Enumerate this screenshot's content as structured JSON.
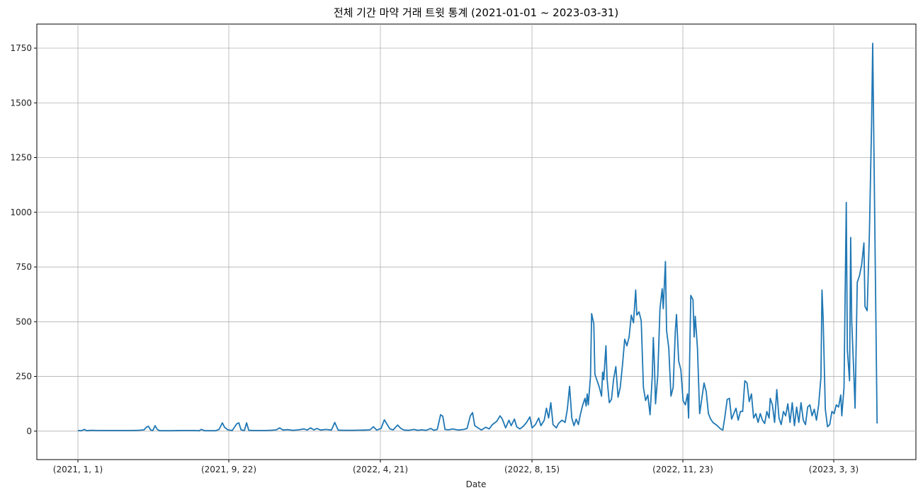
{
  "chart_data": {
    "type": "line",
    "title": "전체 기간 마약 거래 트윗 통계 (2021-01-01 ~ 2023-03-31)",
    "xlabel": "Date",
    "ylabel": "",
    "x_tick_labels": [
      "(2021, 1, 1)",
      "(2021, 9, 22)",
      "(2022, 4, 21)",
      "(2022, 8, 15)",
      "(2022, 11, 23)",
      "(2023, 3, 3)"
    ],
    "y_tick_labels": [
      "0",
      "250",
      "500",
      "750",
      "1000",
      "1250",
      "1500",
      "1750"
    ],
    "ylim": [
      -130,
      1860
    ],
    "grid": true,
    "series_color": "#1f77b4",
    "series": [
      {
        "name": "",
        "points": [
          [
            0,
            3
          ],
          [
            3,
            2
          ],
          [
            6,
            8
          ],
          [
            8,
            2
          ],
          [
            12,
            4
          ],
          [
            18,
            3
          ],
          [
            25,
            3
          ],
          [
            32,
            3
          ],
          [
            40,
            3
          ],
          [
            48,
            3
          ],
          [
            55,
            4
          ],
          [
            60,
            6
          ],
          [
            62,
            18
          ],
          [
            64,
            22
          ],
          [
            66,
            5
          ],
          [
            68,
            3
          ],
          [
            70,
            25
          ],
          [
            72,
            8
          ],
          [
            74,
            2
          ],
          [
            85,
            2
          ],
          [
            95,
            3
          ],
          [
            105,
            3
          ],
          [
            110,
            2
          ],
          [
            112,
            8
          ],
          [
            115,
            2
          ],
          [
            125,
            2
          ],
          [
            128,
            8
          ],
          [
            131,
            38
          ],
          [
            133,
            18
          ],
          [
            136,
            6
          ],
          [
            140,
            3
          ],
          [
            144,
            33
          ],
          [
            146,
            38
          ],
          [
            148,
            6
          ],
          [
            151,
            3
          ],
          [
            153,
            38
          ],
          [
            155,
            4
          ],
          [
            160,
            3
          ],
          [
            170,
            3
          ],
          [
            175,
            4
          ],
          [
            180,
            6
          ],
          [
            183,
            15
          ],
          [
            186,
            5
          ],
          [
            190,
            7
          ],
          [
            195,
            4
          ],
          [
            200,
            6
          ],
          [
            205,
            10
          ],
          [
            208,
            5
          ],
          [
            211,
            15
          ],
          [
            214,
            6
          ],
          [
            217,
            12
          ],
          [
            220,
            5
          ],
          [
            225,
            8
          ],
          [
            230,
            5
          ],
          [
            233,
            40
          ],
          [
            236,
            5
          ],
          [
            240,
            4
          ],
          [
            250,
            4
          ],
          [
            260,
            5
          ],
          [
            265,
            6
          ],
          [
            268,
            20
          ],
          [
            271,
            5
          ],
          [
            275,
            12
          ],
          [
            278,
            52
          ],
          [
            280,
            35
          ],
          [
            283,
            10
          ],
          [
            286,
            6
          ],
          [
            290,
            28
          ],
          [
            293,
            12
          ],
          [
            296,
            5
          ],
          [
            300,
            4
          ],
          [
            305,
            8
          ],
          [
            308,
            4
          ],
          [
            312,
            6
          ],
          [
            316,
            4
          ],
          [
            320,
            12
          ],
          [
            323,
            4
          ],
          [
            326,
            8
          ],
          [
            329,
            75
          ],
          [
            331,
            68
          ],
          [
            333,
            8
          ],
          [
            336,
            6
          ],
          [
            340,
            10
          ],
          [
            345,
            5
          ],
          [
            350,
            8
          ],
          [
            353,
            12
          ],
          [
            356,
            70
          ],
          [
            358,
            85
          ],
          [
            360,
            25
          ],
          [
            363,
            15
          ],
          [
            366,
            5
          ],
          [
            370,
            18
          ],
          [
            373,
            10
          ],
          [
            376,
            30
          ],
          [
            380,
            45
          ],
          [
            383,
            70
          ],
          [
            385,
            55
          ],
          [
            388,
            15
          ],
          [
            391,
            50
          ],
          [
            393,
            25
          ],
          [
            396,
            55
          ],
          [
            398,
            20
          ],
          [
            401,
            10
          ],
          [
            404,
            22
          ],
          [
            407,
            40
          ],
          [
            410,
            65
          ],
          [
            412,
            15
          ],
          [
            415,
            30
          ],
          [
            418,
            60
          ],
          [
            420,
            25
          ],
          [
            423,
            50
          ],
          [
            425,
            105
          ],
          [
            427,
            60
          ],
          [
            429,
            130
          ],
          [
            431,
            30
          ],
          [
            434,
            15
          ],
          [
            436,
            35
          ],
          [
            439,
            50
          ],
          [
            442,
            40
          ],
          [
            444,
            100
          ],
          [
            446,
            205
          ],
          [
            448,
            60
          ],
          [
            450,
            25
          ],
          [
            452,
            55
          ],
          [
            454,
            30
          ],
          [
            456,
            80
          ],
          [
            458,
            120
          ],
          [
            460,
            150
          ],
          [
            461,
            115
          ],
          [
            462,
            170
          ],
          [
            463,
            120
          ],
          [
            465,
            250
          ],
          [
            466,
            537
          ],
          [
            468,
            490
          ],
          [
            469,
            260
          ],
          [
            471,
            230
          ],
          [
            473,
            200
          ],
          [
            475,
            160
          ],
          [
            476,
            270
          ],
          [
            477,
            235
          ],
          [
            479,
            390
          ],
          [
            480,
            240
          ],
          [
            482,
            130
          ],
          [
            484,
            145
          ],
          [
            486,
            240
          ],
          [
            488,
            295
          ],
          [
            490,
            155
          ],
          [
            492,
            200
          ],
          [
            494,
            300
          ],
          [
            496,
            420
          ],
          [
            498,
            390
          ],
          [
            500,
            430
          ],
          [
            502,
            530
          ],
          [
            504,
            495
          ],
          [
            506,
            645
          ],
          [
            507,
            530
          ],
          [
            509,
            545
          ],
          [
            511,
            505
          ],
          [
            513,
            200
          ],
          [
            515,
            140
          ],
          [
            517,
            165
          ],
          [
            519,
            75
          ],
          [
            521,
            250
          ],
          [
            522,
            428
          ],
          [
            523,
            300
          ],
          [
            524,
            125
          ],
          [
            526,
            250
          ],
          [
            528,
            560
          ],
          [
            530,
            650
          ],
          [
            531,
            560
          ],
          [
            533,
            775
          ],
          [
            534,
            460
          ],
          [
            536,
            380
          ],
          [
            538,
            160
          ],
          [
            540,
            200
          ],
          [
            542,
            460
          ],
          [
            543,
            533
          ],
          [
            545,
            320
          ],
          [
            547,
            280
          ],
          [
            549,
            140
          ],
          [
            551,
            120
          ],
          [
            553,
            170
          ],
          [
            554,
            60
          ],
          [
            556,
            620
          ],
          [
            558,
            600
          ],
          [
            559,
            430
          ],
          [
            560,
            525
          ],
          [
            562,
            380
          ],
          [
            564,
            80
          ],
          [
            566,
            150
          ],
          [
            568,
            220
          ],
          [
            570,
            180
          ],
          [
            572,
            80
          ],
          [
            574,
            55
          ],
          [
            576,
            40
          ],
          [
            580,
            25
          ],
          [
            583,
            10
          ],
          [
            585,
            5
          ],
          [
            587,
            70
          ],
          [
            589,
            145
          ],
          [
            591,
            150
          ],
          [
            593,
            55
          ],
          [
            595,
            80
          ],
          [
            597,
            105
          ],
          [
            599,
            50
          ],
          [
            601,
            90
          ],
          [
            603,
            90
          ],
          [
            605,
            230
          ],
          [
            607,
            220
          ],
          [
            609,
            135
          ],
          [
            611,
            170
          ],
          [
            613,
            60
          ],
          [
            615,
            80
          ],
          [
            617,
            40
          ],
          [
            619,
            80
          ],
          [
            621,
            50
          ],
          [
            623,
            35
          ],
          [
            625,
            90
          ],
          [
            627,
            60
          ],
          [
            628,
            150
          ],
          [
            630,
            120
          ],
          [
            632,
            40
          ],
          [
            634,
            190
          ],
          [
            636,
            60
          ],
          [
            638,
            30
          ],
          [
            640,
            90
          ],
          [
            642,
            70
          ],
          [
            644,
            125
          ],
          [
            646,
            40
          ],
          [
            648,
            130
          ],
          [
            650,
            25
          ],
          [
            652,
            110
          ],
          [
            654,
            40
          ],
          [
            656,
            130
          ],
          [
            658,
            50
          ],
          [
            660,
            30
          ],
          [
            662,
            110
          ],
          [
            664,
            120
          ],
          [
            666,
            70
          ],
          [
            668,
            100
          ],
          [
            670,
            50
          ],
          [
            672,
            120
          ],
          [
            674,
            245
          ],
          [
            675,
            645
          ],
          [
            676,
            520
          ],
          [
            678,
            100
          ],
          [
            680,
            20
          ],
          [
            682,
            30
          ],
          [
            684,
            90
          ],
          [
            686,
            80
          ],
          [
            688,
            120
          ],
          [
            690,
            110
          ],
          [
            692,
            165
          ],
          [
            693,
            70
          ],
          [
            695,
            200
          ],
          [
            697,
            1045
          ],
          [
            698,
            370
          ],
          [
            700,
            230
          ],
          [
            701,
            885
          ],
          [
            702,
            500
          ],
          [
            704,
            250
          ],
          [
            705,
            105
          ],
          [
            707,
            680
          ],
          [
            709,
            710
          ],
          [
            711,
            760
          ],
          [
            713,
            860
          ],
          [
            714,
            570
          ],
          [
            716,
            550
          ],
          [
            718,
            900
          ],
          [
            720,
            1400
          ],
          [
            721,
            1772
          ],
          [
            723,
            900
          ],
          [
            725,
            35
          ]
        ]
      }
    ]
  }
}
